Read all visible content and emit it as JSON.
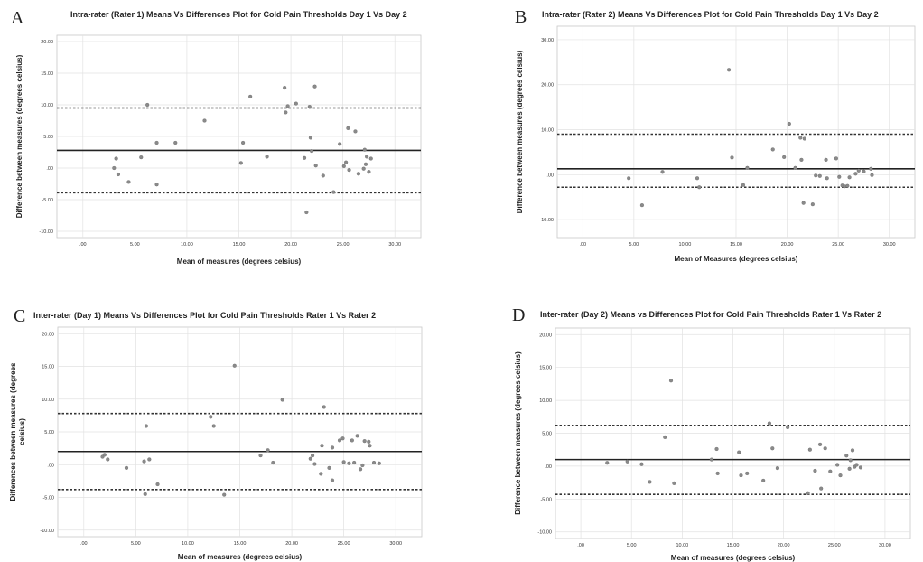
{
  "chart_data": [
    {
      "panel": "A",
      "type": "scatter",
      "title": "Intra-rater (Rater 1) Means Vs Differences Plot for Cold Pain Thresholds Day 1 Vs Day 2",
      "xlabel": "Mean of measures (degrees celsius)",
      "ylabel": [
        "Difference between measures (degrees celsius)"
      ],
      "xlim": [
        -2.5,
        32.5
      ],
      "ylim": [
        -11,
        21
      ],
      "xticks": [
        0,
        5,
        10,
        15,
        20,
        25,
        30
      ],
      "xtick_labels": [
        ".00",
        "5.00",
        "10.00",
        "15.00",
        "20.00",
        "25.00",
        "30.00"
      ],
      "yticks": [
        -10,
        -5,
        0,
        5,
        10,
        15,
        20
      ],
      "ytick_labels": [
        "-10.00",
        "-5.00",
        ".00",
        "5.00",
        "10.00",
        "15.00",
        "20.00"
      ],
      "mean_line": 2.8,
      "loa": [
        9.5,
        -3.9
      ],
      "grid": true,
      "points": [
        [
          3.0,
          0.0
        ],
        [
          3.2,
          1.5
        ],
        [
          3.4,
          -1.0
        ],
        [
          4.4,
          -2.2
        ],
        [
          5.6,
          1.7
        ],
        [
          6.2,
          10.0
        ],
        [
          7.1,
          4.0
        ],
        [
          7.1,
          -2.6
        ],
        [
          8.9,
          4.0
        ],
        [
          11.7,
          7.5
        ],
        [
          15.2,
          0.8
        ],
        [
          15.4,
          4.0
        ],
        [
          16.1,
          11.3
        ],
        [
          17.7,
          1.8
        ],
        [
          19.4,
          12.7
        ],
        [
          19.5,
          8.8
        ],
        [
          19.7,
          9.8
        ],
        [
          20.5,
          10.2
        ],
        [
          21.3,
          1.6
        ],
        [
          21.5,
          -7.0
        ],
        [
          21.8,
          9.7
        ],
        [
          21.9,
          4.8
        ],
        [
          22.0,
          2.7
        ],
        [
          22.3,
          12.9
        ],
        [
          22.4,
          0.4
        ],
        [
          23.1,
          -1.2
        ],
        [
          24.1,
          -3.8
        ],
        [
          24.7,
          3.8
        ],
        [
          25.1,
          0.3
        ],
        [
          25.3,
          0.9
        ],
        [
          25.5,
          6.3
        ],
        [
          25.6,
          -0.3
        ],
        [
          26.2,
          5.8
        ],
        [
          26.5,
          -0.9
        ],
        [
          27.0,
          -0.1
        ],
        [
          27.1,
          2.9
        ],
        [
          27.2,
          0.6
        ],
        [
          27.3,
          1.8
        ],
        [
          27.5,
          -0.6
        ],
        [
          27.7,
          1.5
        ]
      ]
    },
    {
      "panel": "B",
      "type": "scatter",
      "title": "Intra-rater (Rater 2) Means Vs Differences Plot for Cold Pain Thresholds Day 1 Vs Day 2",
      "xlabel": "Mean of Measures (degrees celsius)",
      "ylabel": [
        "Difference between measures (degrees celsius)"
      ],
      "xlim": [
        -2.5,
        32.5
      ],
      "ylim": [
        -14,
        33
      ],
      "xticks": [
        0,
        5,
        10,
        15,
        20,
        25,
        30
      ],
      "xtick_labels": [
        ".00",
        "5.00",
        "10.00",
        "15.00",
        "20.00",
        "25.00",
        "30.00"
      ],
      "yticks": [
        -10,
        0,
        10,
        20,
        30
      ],
      "ytick_labels": [
        "-10.00",
        ".00",
        "10.00",
        "20.00",
        "30.00"
      ],
      "mean_line": 1.3,
      "loa": [
        9.0,
        -2.8
      ],
      "grid": true,
      "points": [
        [
          4.5,
          -0.8
        ],
        [
          5.8,
          -6.8
        ],
        [
          7.8,
          0.6
        ],
        [
          11.2,
          -0.8
        ],
        [
          11.4,
          -2.8
        ],
        [
          14.3,
          23.3
        ],
        [
          14.6,
          3.8
        ],
        [
          15.7,
          -2.3
        ],
        [
          16.1,
          1.5
        ],
        [
          18.6,
          5.6
        ],
        [
          19.7,
          3.9
        ],
        [
          20.2,
          11.3
        ],
        [
          20.8,
          1.5
        ],
        [
          21.3,
          8.2
        ],
        [
          21.4,
          3.3
        ],
        [
          21.6,
          -6.3
        ],
        [
          21.7,
          8.0
        ],
        [
          22.5,
          -6.6
        ],
        [
          22.8,
          -0.2
        ],
        [
          23.2,
          -0.3
        ],
        [
          23.8,
          3.3
        ],
        [
          23.9,
          -0.8
        ],
        [
          24.8,
          3.6
        ],
        [
          25.1,
          -0.5
        ],
        [
          25.4,
          -2.4
        ],
        [
          25.6,
          -2.6
        ],
        [
          25.9,
          -2.5
        ],
        [
          26.1,
          -0.6
        ],
        [
          26.7,
          0.2
        ],
        [
          27.0,
          0.9
        ],
        [
          27.5,
          0.7
        ],
        [
          28.2,
          1.3
        ],
        [
          28.3,
          -0.1
        ]
      ]
    },
    {
      "panel": "C",
      "type": "scatter",
      "title": "Inter-rater (Day 1)  Means Vs Differences Plot for Cold Pain Thresholds Rater 1 Vs Rater 2",
      "xlabel": "Mean of measures (degrees celsius)",
      "ylabel": [
        "Differences between measures (degrees",
        "celsius)"
      ],
      "xlim": [
        -2.5,
        32.5
      ],
      "ylim": [
        -11,
        21
      ],
      "xticks": [
        0,
        5,
        10,
        15,
        20,
        25,
        30
      ],
      "xtick_labels": [
        ".00",
        "5.00",
        "10.00",
        "15.00",
        "20.00",
        "25.00",
        "30.00"
      ],
      "yticks": [
        -10,
        -5,
        0,
        5,
        10,
        15,
        20
      ],
      "ytick_labels": [
        "-10.00",
        "-5.00",
        ".00",
        "5.00",
        "10.00",
        "15.00",
        "20.00"
      ],
      "mean_line": 2.0,
      "loa": [
        7.8,
        -3.8
      ],
      "grid": true,
      "points": [
        [
          1.8,
          1.2
        ],
        [
          2.0,
          1.5
        ],
        [
          2.3,
          0.8
        ],
        [
          4.1,
          -0.5
        ],
        [
          5.8,
          0.5
        ],
        [
          5.9,
          -4.5
        ],
        [
          6.0,
          5.9
        ],
        [
          6.3,
          0.8
        ],
        [
          7.1,
          -3.0
        ],
        [
          12.2,
          7.3
        ],
        [
          12.5,
          5.9
        ],
        [
          13.5,
          -4.6
        ],
        [
          14.5,
          15.1
        ],
        [
          17.0,
          1.4
        ],
        [
          17.7,
          2.2
        ],
        [
          18.2,
          0.3
        ],
        [
          19.1,
          9.9
        ],
        [
          21.8,
          0.9
        ],
        [
          22.0,
          1.4
        ],
        [
          22.2,
          0.1
        ],
        [
          22.8,
          -1.4
        ],
        [
          22.9,
          2.9
        ],
        [
          23.1,
          8.8
        ],
        [
          23.6,
          -0.5
        ],
        [
          23.9,
          2.6
        ],
        [
          23.9,
          -2.4
        ],
        [
          24.6,
          3.7
        ],
        [
          24.9,
          4.0
        ],
        [
          25.0,
          0.4
        ],
        [
          25.5,
          0.2
        ],
        [
          25.8,
          3.7
        ],
        [
          26.0,
          0.3
        ],
        [
          26.3,
          4.4
        ],
        [
          26.6,
          -0.7
        ],
        [
          26.8,
          -0.1
        ],
        [
          27.0,
          3.6
        ],
        [
          27.4,
          3.5
        ],
        [
          27.5,
          2.9
        ],
        [
          27.9,
          0.3
        ],
        [
          28.4,
          0.2
        ]
      ]
    },
    {
      "panel": "D",
      "type": "scatter",
      "title": "Inter-rater (Day 2) Means vs Differences Plot for Cold Pain Thresholds Rater 1 Vs Rater 2",
      "xlabel": "Mean of measures (degrees celsius)",
      "ylabel": [
        "Difference between measures (degrees celsius)"
      ],
      "xlim": [
        -2.5,
        32.5
      ],
      "ylim": [
        -11,
        21
      ],
      "xticks": [
        0,
        5,
        10,
        15,
        20,
        25,
        30
      ],
      "xtick_labels": [
        ".00",
        "5.00",
        "10.00",
        "15.00",
        "20.00",
        "25.00",
        "30.00"
      ],
      "yticks": [
        -10,
        -5,
        0,
        5,
        10,
        15,
        20
      ],
      "ytick_labels": [
        "-10.00",
        "-5.00",
        ".00",
        "5.00",
        "10.00",
        "15.00",
        "20.00"
      ],
      "mean_line": 1.0,
      "loa": [
        6.2,
        -4.3
      ],
      "grid": true,
      "points": [
        [
          2.6,
          0.5
        ],
        [
          4.6,
          0.7
        ],
        [
          6.0,
          0.3
        ],
        [
          6.8,
          -2.4
        ],
        [
          8.3,
          4.4
        ],
        [
          8.9,
          13.0
        ],
        [
          9.2,
          -2.6
        ],
        [
          12.9,
          1.0
        ],
        [
          13.4,
          2.6
        ],
        [
          13.5,
          -1.1
        ],
        [
          15.6,
          2.1
        ],
        [
          15.8,
          -1.4
        ],
        [
          16.4,
          -1.1
        ],
        [
          18.0,
          -2.2
        ],
        [
          18.6,
          6.5
        ],
        [
          18.9,
          2.7
        ],
        [
          19.4,
          -0.3
        ],
        [
          20.4,
          5.9
        ],
        [
          22.4,
          -4.1
        ],
        [
          22.6,
          2.5
        ],
        [
          23.1,
          -0.7
        ],
        [
          23.6,
          3.3
        ],
        [
          23.7,
          -3.4
        ],
        [
          24.1,
          2.7
        ],
        [
          24.6,
          -0.8
        ],
        [
          25.3,
          0.2
        ],
        [
          25.6,
          -1.4
        ],
        [
          26.2,
          1.6
        ],
        [
          26.5,
          -0.4
        ],
        [
          26.6,
          0.9
        ],
        [
          26.8,
          2.4
        ],
        [
          27.0,
          -0.1
        ],
        [
          27.2,
          0.2
        ],
        [
          27.6,
          -0.2
        ]
      ]
    }
  ]
}
